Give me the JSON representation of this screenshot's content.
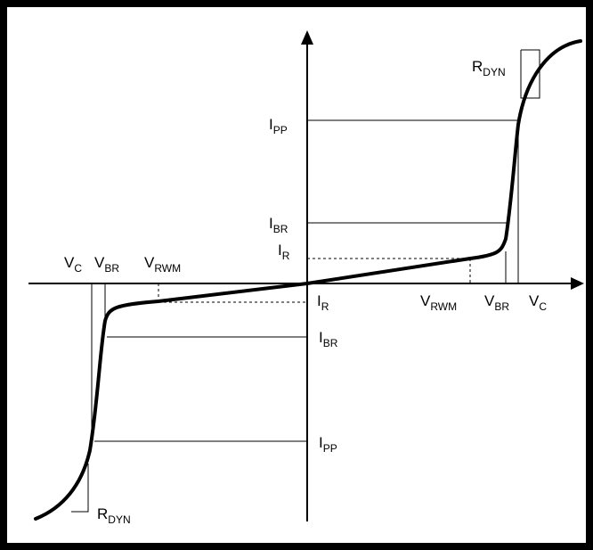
{
  "diagram": {
    "labels": {
      "ipp": {
        "main": "I",
        "sub": "PP"
      },
      "ibr": {
        "main": "I",
        "sub": "BR"
      },
      "ir": {
        "main": "I",
        "sub": "R"
      },
      "vc": {
        "main": "V",
        "sub": "C"
      },
      "vbr": {
        "main": "V",
        "sub": "BR"
      },
      "vrwm": {
        "main": "V",
        "sub": "RWM"
      },
      "rdyn": {
        "main": "R",
        "sub": "DYN"
      }
    },
    "colors": {
      "ink": "#000000",
      "background": "#ffffff"
    }
  }
}
